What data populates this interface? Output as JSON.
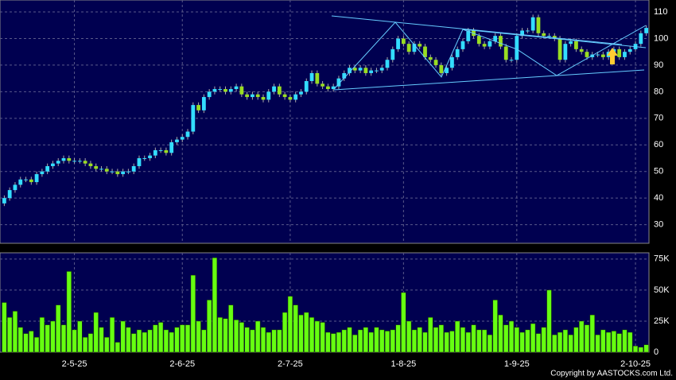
{
  "chart_data": {
    "type": "candlestick",
    "categories": [
      null,
      null,
      null,
      null,
      null,
      null,
      null,
      null,
      null,
      null,
      null,
      null,
      null,
      "2-5-25",
      null,
      null,
      null,
      null,
      null,
      null,
      null,
      null,
      null,
      null,
      null,
      null,
      null,
      null,
      null,
      null,
      null,
      null,
      null,
      "2-6-25",
      null,
      null,
      null,
      null,
      null,
      null,
      null,
      null,
      null,
      null,
      null,
      null,
      null,
      null,
      null,
      null,
      null,
      null,
      null,
      "2-7-25",
      null,
      null,
      null,
      null,
      null,
      null,
      null,
      null,
      null,
      null,
      null,
      null,
      null,
      null,
      null,
      null,
      null,
      null,
      null,
      null,
      "1-8-25",
      null,
      null,
      null,
      null,
      null,
      null,
      null,
      null,
      null,
      null,
      null,
      null,
      null,
      null,
      null,
      null,
      null,
      null,
      null,
      null,
      "1-9-25",
      null,
      null,
      null,
      null,
      null,
      null,
      null,
      null,
      null,
      null,
      null,
      null,
      null,
      null,
      null,
      null,
      null,
      null,
      null,
      null,
      null,
      "2-10-25",
      null,
      null
    ],
    "open": [
      38,
      40,
      43,
      45,
      47,
      47,
      46,
      49,
      50,
      52,
      53,
      54,
      55,
      54,
      54,
      54,
      53,
      52,
      51,
      51,
      50,
      50,
      49,
      50,
      50,
      52,
      55,
      55,
      56,
      58,
      58,
      57,
      61,
      62,
      63,
      65,
      75,
      73,
      78,
      80,
      81,
      81,
      80,
      81,
      82,
      79,
      78,
      79,
      78,
      77,
      80,
      82,
      79,
      78,
      77,
      79,
      80,
      84,
      87,
      83,
      82,
      81,
      82,
      85,
      87,
      89,
      88,
      89,
      87,
      88,
      88,
      89,
      92,
      96,
      100,
      98,
      95,
      98,
      97,
      93,
      92,
      90,
      87,
      89,
      93,
      96,
      99,
      103,
      101,
      98,
      97,
      99,
      101,
      97,
      92,
      92,
      101,
      103,
      103,
      108,
      102,
      101,
      101,
      100,
      92,
      98,
      99,
      96,
      95,
      93,
      94,
      94,
      93,
      95,
      96,
      93,
      95,
      96,
      98,
      102
    ],
    "high": [
      41,
      44,
      46,
      48,
      48,
      48,
      50,
      51,
      53,
      54,
      55,
      56,
      56,
      55,
      55,
      55,
      54,
      53,
      52,
      52,
      51,
      51,
      51,
      51,
      53,
      56,
      56,
      57,
      59,
      59,
      59,
      62,
      63,
      64,
      66,
      76,
      76,
      79,
      81,
      82,
      82,
      82,
      82,
      83,
      83,
      80,
      80,
      80,
      79,
      81,
      83,
      83,
      80,
      79,
      80,
      81,
      85,
      88,
      88,
      84,
      83,
      83,
      86,
      88,
      90,
      90,
      90,
      90,
      89,
      89,
      90,
      93,
      97,
      101,
      101,
      99,
      99,
      99,
      98,
      94,
      93,
      91,
      90,
      94,
      97,
      100,
      104,
      104,
      102,
      99,
      100,
      102,
      102,
      98,
      93,
      102,
      104,
      104,
      109,
      109,
      103,
      102,
      102,
      101,
      99,
      100,
      100,
      97,
      96,
      95,
      95,
      95,
      96,
      97,
      97,
      96,
      97,
      99,
      103,
      105
    ],
    "low": [
      37,
      39,
      42,
      44,
      46,
      45,
      45,
      48,
      49,
      51,
      52,
      53,
      53,
      53,
      53,
      52,
      51,
      50,
      50,
      49,
      49,
      48,
      48,
      49,
      49,
      51,
      54,
      54,
      55,
      57,
      56,
      56,
      60,
      61,
      62,
      64,
      72,
      72,
      77,
      79,
      80,
      79,
      79,
      80,
      78,
      77,
      77,
      77,
      76,
      76,
      79,
      78,
      77,
      76,
      76,
      78,
      79,
      83,
      82,
      81,
      80,
      80,
      81,
      84,
      86,
      87,
      87,
      86,
      86,
      87,
      87,
      88,
      91,
      95,
      97,
      94,
      94,
      96,
      92,
      91,
      89,
      86,
      86,
      88,
      92,
      95,
      98,
      100,
      97,
      96,
      96,
      98,
      96,
      91,
      91,
      91,
      100,
      102,
      102,
      101,
      100,
      100,
      99,
      91,
      91,
      97,
      95,
      94,
      92,
      92,
      93,
      92,
      92,
      94,
      92,
      92,
      94,
      95,
      97,
      101
    ],
    "close": [
      40,
      43,
      45,
      47,
      47,
      46,
      49,
      50,
      52,
      53,
      54,
      55,
      54,
      54,
      54,
      53,
      52,
      51,
      51,
      50,
      50,
      49,
      50,
      50,
      52,
      55,
      55,
      56,
      58,
      58,
      57,
      61,
      62,
      63,
      65,
      75,
      73,
      78,
      80,
      81,
      81,
      80,
      81,
      82,
      79,
      78,
      79,
      78,
      77,
      80,
      82,
      79,
      78,
      77,
      79,
      80,
      84,
      87,
      83,
      82,
      81,
      82,
      85,
      87,
      89,
      88,
      89,
      87,
      88,
      88,
      89,
      92,
      96,
      100,
      98,
      95,
      98,
      97,
      93,
      92,
      90,
      87,
      89,
      93,
      96,
      99,
      103,
      101,
      98,
      97,
      99,
      101,
      97,
      92,
      92,
      101,
      103,
      103,
      108,
      102,
      101,
      101,
      100,
      92,
      98,
      99,
      96,
      95,
      93,
      94,
      94,
      93,
      95,
      96,
      93,
      95,
      96,
      98,
      102,
      104
    ],
    "up_color": "#33ddff",
    "down_color": "#99dd22",
    "ylim": [
      23,
      114.5
    ],
    "yticks": [
      30,
      40,
      50,
      60,
      70,
      80,
      90,
      100,
      110
    ],
    "grid": true,
    "volume": {
      "type": "bar",
      "color": "#66ff11",
      "values": [
        40000,
        28000,
        33000,
        20000,
        15000,
        17000,
        12000,
        28000,
        22000,
        25000,
        38000,
        22000,
        65000,
        18000,
        25000,
        12000,
        15000,
        32000,
        20000,
        12000,
        28000,
        8000,
        25000,
        20000,
        15000,
        18000,
        16000,
        18000,
        22000,
        24000,
        18000,
        16000,
        20000,
        22000,
        22000,
        62000,
        25000,
        18000,
        42000,
        76000,
        28000,
        27000,
        38000,
        26000,
        24000,
        20000,
        18000,
        25000,
        20000,
        16000,
        18000,
        18000,
        32000,
        45000,
        38000,
        30000,
        32000,
        28000,
        25000,
        24000,
        16000,
        15000,
        16000,
        18000,
        20000,
        14000,
        18000,
        20000,
        16000,
        20000,
        18000,
        17000,
        18000,
        22000,
        48000,
        25000,
        18000,
        20000,
        16000,
        28000,
        20000,
        22000,
        16000,
        17000,
        25000,
        20000,
        16000,
        22000,
        18000,
        18000,
        14000,
        42000,
        30000,
        22000,
        25000,
        20000,
        16000,
        18000,
        23000,
        15000,
        20000,
        50000,
        14000,
        16000,
        18000,
        14000,
        20000,
        25000,
        22000,
        30000,
        14000,
        18000,
        16000,
        17000,
        15000,
        18000,
        16000,
        5000,
        4000,
        6000
      ],
      "ylim": [
        0,
        80000
      ],
      "yticks": [
        0,
        {
          "value": 25000,
          "label": "25K"
        },
        {
          "value": 50000,
          "label": "50K"
        },
        {
          "value": 75000,
          "label": "75K"
        }
      ]
    }
  },
  "copyright": "Copyright by AASTOCKS.com Ltd."
}
